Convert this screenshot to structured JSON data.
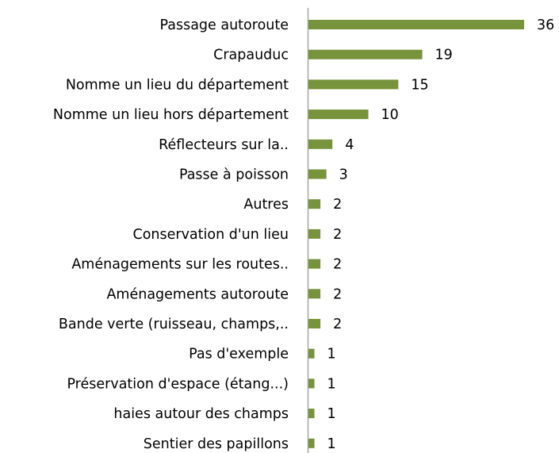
{
  "chart_data": {
    "type": "barh",
    "categories": [
      "Passage autoroute",
      "Crapauduc",
      "Nomme un lieu du département",
      "Nomme un lieu hors département",
      "Réflecteurs sur la..",
      "Passe à poisson",
      "Autres",
      "Conservation d'un lieu",
      "Aménagements sur les routes..",
      "Aménagements autoroute",
      "Bande verte (ruisseau, champs,..",
      "Pas d'exemple",
      "Préservation d'espace (étang...)",
      "haies autour des champs",
      "Sentier des papillons"
    ],
    "values": [
      36,
      19,
      15,
      10,
      4,
      3,
      2,
      2,
      2,
      2,
      2,
      1,
      1,
      1,
      1
    ],
    "color": "#77933c"
  }
}
